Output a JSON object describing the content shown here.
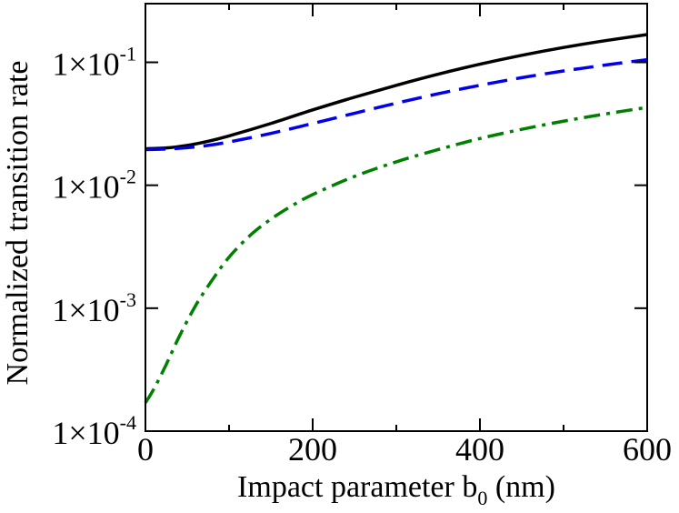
{
  "chart_data": {
    "type": "line",
    "title": "",
    "xlabel": "Impact parameter b",
    "xlabel_subscript": "0",
    "xlabel_suffix": " (nm)",
    "ylabel": "Normalized transition rate",
    "xlim": [
      0,
      600
    ],
    "ylim": [
      0.0001,
      0.3
    ],
    "yscale": "log",
    "grid": false,
    "x_ticks": [
      {
        "value": 0,
        "label": "0"
      },
      {
        "value": 200,
        "label": "200"
      },
      {
        "value": 400,
        "label": "400"
      },
      {
        "value": 600,
        "label": "600"
      }
    ],
    "y_ticks": [
      {
        "value": 0.0001,
        "mantissa": "1×10",
        "exponent": "-4"
      },
      {
        "value": 0.001,
        "mantissa": "1×10",
        "exponent": "-3"
      },
      {
        "value": 0.01,
        "mantissa": "1×10",
        "exponent": "-2"
      },
      {
        "value": 0.1,
        "mantissa": "1×10",
        "exponent": "-1"
      }
    ],
    "series": [
      {
        "name": "solid",
        "color": "#000000",
        "dash": "solid",
        "x": [
          0,
          25,
          50,
          75,
          100,
          150,
          200,
          250,
          300,
          350,
          400,
          450,
          500,
          550,
          600
        ],
        "y": [
          0.0198,
          0.0201,
          0.0211,
          0.0228,
          0.0252,
          0.0318,
          0.041,
          0.052,
          0.065,
          0.08,
          0.0965,
          0.114,
          0.132,
          0.15,
          0.168
        ]
      },
      {
        "name": "dashed",
        "color": "#0000ee",
        "dash": "dashed",
        "x": [
          0,
          25,
          50,
          75,
          100,
          150,
          200,
          250,
          300,
          350,
          400,
          450,
          500,
          550,
          600
        ],
        "y": [
          0.0195,
          0.0197,
          0.0202,
          0.0211,
          0.0225,
          0.0264,
          0.0318,
          0.0385,
          0.0465,
          0.0555,
          0.065,
          0.075,
          0.085,
          0.095,
          0.105
        ]
      },
      {
        "name": "dash-dot",
        "color": "#008000",
        "dash": "dashdot",
        "x": [
          0,
          10,
          25,
          40,
          60,
          80,
          100,
          125,
          150,
          175,
          200,
          250,
          300,
          350,
          400,
          450,
          500,
          550,
          600
        ],
        "y": [
          0.00017,
          0.00022,
          0.00035,
          0.00058,
          0.00105,
          0.0017,
          0.0026,
          0.0039,
          0.0053,
          0.0068,
          0.0084,
          0.0118,
          0.0155,
          0.0195,
          0.024,
          0.0285,
          0.0332,
          0.038,
          0.043
        ]
      }
    ]
  }
}
